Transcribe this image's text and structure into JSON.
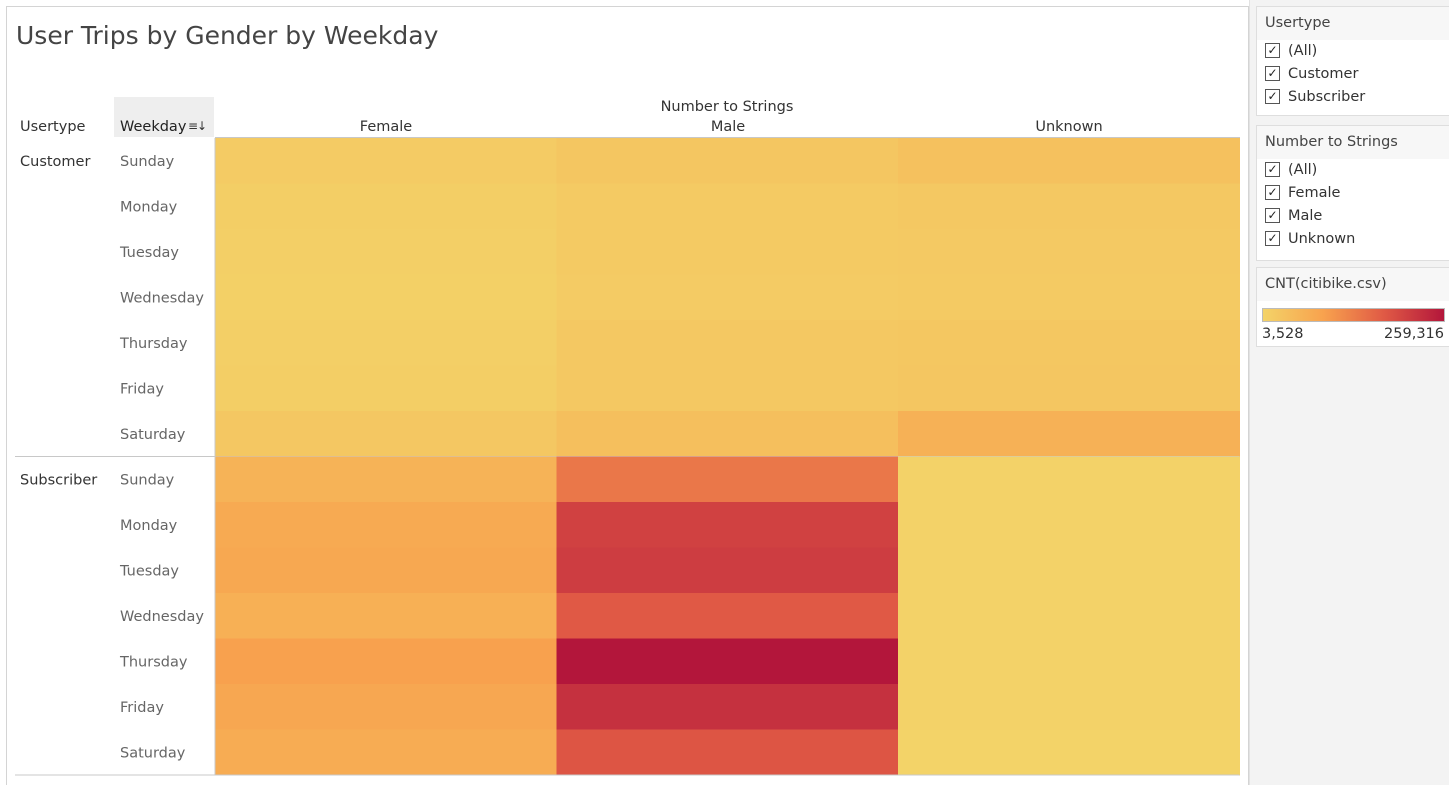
{
  "title": "User Trips by Gender by Weekday",
  "headers": {
    "usertype": "Usertype",
    "weekday": "Weekday",
    "group": "Number to Strings",
    "columns": [
      "Female",
      "Male",
      "Unknown"
    ]
  },
  "icons": {
    "weekday_sort": "sort-descending-icon",
    "checkbox": "checkmark-icon"
  },
  "sidebar": {
    "usertype_filter": {
      "title": "Usertype",
      "items": [
        {
          "label": "(All)",
          "checked": true
        },
        {
          "label": "Customer",
          "checked": true
        },
        {
          "label": "Subscriber",
          "checked": true
        }
      ]
    },
    "gender_filter": {
      "title": "Number to Strings",
      "items": [
        {
          "label": "(All)",
          "checked": true
        },
        {
          "label": "Female",
          "checked": true
        },
        {
          "label": "Male",
          "checked": true
        },
        {
          "label": "Unknown",
          "checked": true
        }
      ]
    },
    "legend": {
      "title": "CNT(citibike.csv)",
      "min_label": "3,528",
      "max_label": "259,316"
    }
  },
  "colors": {
    "ramp": [
      "#f3d368",
      "#f8a24e",
      "#e05a45",
      "#b3163b"
    ],
    "separator": "#c8c8c8"
  },
  "chart_data": {
    "type": "heatmap",
    "title": "User Trips by Gender by Weekday",
    "x_group_label": "Number to Strings",
    "columns": [
      "Female",
      "Male",
      "Unknown"
    ],
    "row_dimensions": [
      "Usertype",
      "Weekday"
    ],
    "groups": [
      {
        "name": "Customer",
        "rows": [
          "Sunday",
          "Monday",
          "Tuesday",
          "Wednesday",
          "Thursday",
          "Friday",
          "Saturday"
        ],
        "values": [
          [
            18000,
            26000,
            35000
          ],
          [
            12000,
            20000,
            22000
          ],
          [
            11000,
            19000,
            21000
          ],
          [
            9000,
            17000,
            19000
          ],
          [
            11000,
            22000,
            25000
          ],
          [
            12000,
            23000,
            27000
          ],
          [
            24000,
            38000,
            62000
          ]
        ]
      },
      {
        "name": "Subscriber",
        "rows": [
          "Sunday",
          "Monday",
          "Tuesday",
          "Wednesday",
          "Thursday",
          "Friday",
          "Saturday"
        ],
        "values": [
          [
            60000,
            140000,
            5000
          ],
          [
            75000,
            205000,
            5000
          ],
          [
            78000,
            210000,
            5000
          ],
          [
            65000,
            175000,
            5000
          ],
          [
            90000,
            259316,
            5000
          ],
          [
            80000,
            225000,
            5000
          ],
          [
            72000,
            180000,
            3528
          ]
        ]
      }
    ],
    "color_scale": {
      "min": 3528,
      "max": 259316
    }
  }
}
